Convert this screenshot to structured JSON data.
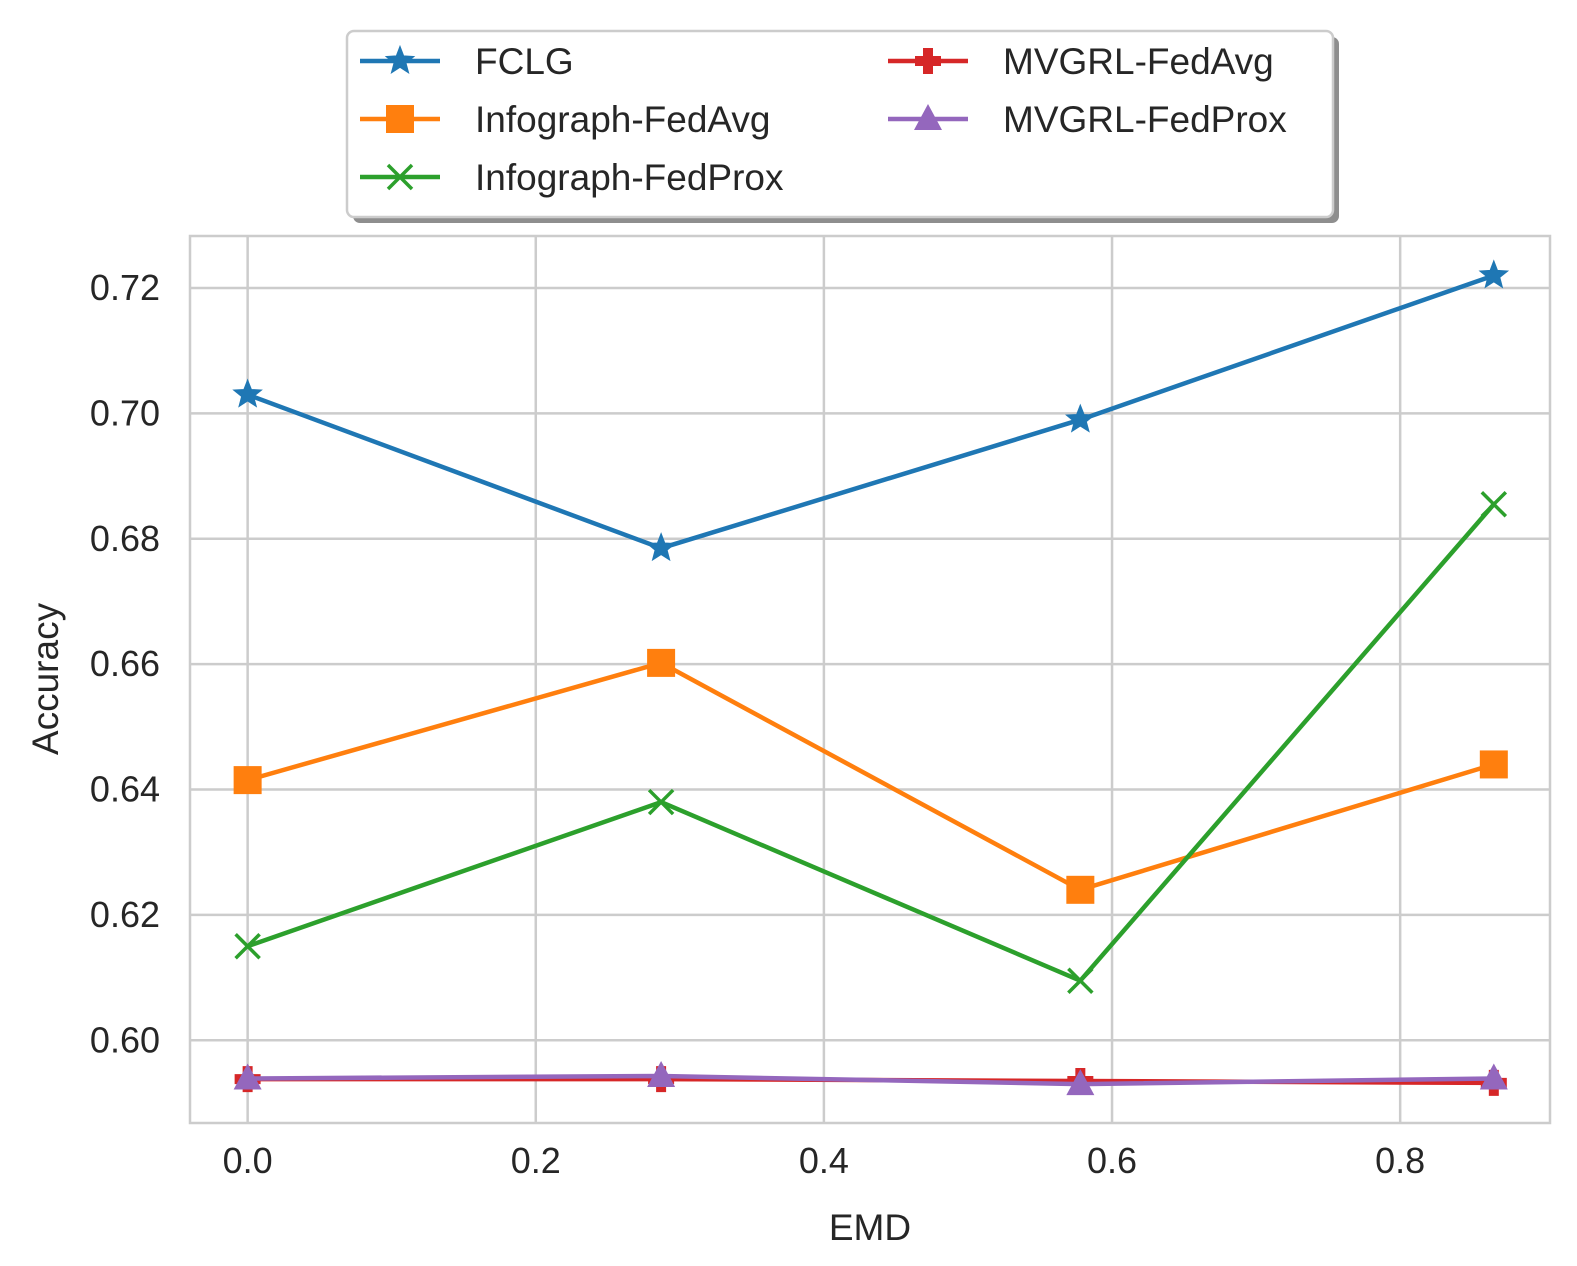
{
  "chart_data": {
    "type": "line",
    "title": "",
    "xlabel": "EMD",
    "ylabel": "Accuracy",
    "xlim": [
      -0.04,
      0.904
    ],
    "ylim": [
      0.5868,
      0.7283
    ],
    "x_ticks": [
      0.0,
      0.2,
      0.4,
      0.6,
      0.8
    ],
    "x_tick_labels": [
      "0.0",
      "0.2",
      "0.4",
      "0.6",
      "0.8"
    ],
    "y_ticks": [
      0.6,
      0.62,
      0.64,
      0.66,
      0.68,
      0.7,
      0.72
    ],
    "y_tick_labels": [
      "0.60",
      "0.62",
      "0.64",
      "0.66",
      "0.68",
      "0.70",
      "0.72"
    ],
    "grid": true,
    "legend_position": "top-center",
    "x": [
      0.0,
      0.287,
      0.578,
      0.865
    ],
    "series": [
      {
        "name": "FCLG",
        "color": "#1f77b4",
        "marker": "star",
        "values": [
          0.703,
          0.6785,
          0.699,
          0.722
        ]
      },
      {
        "name": "Infograph-FedAvg",
        "color": "#ff7f0e",
        "marker": "square",
        "values": [
          0.6415,
          0.6602,
          0.624,
          0.644
        ]
      },
      {
        "name": "Infograph-FedProx",
        "color": "#2ca02c",
        "marker": "x",
        "values": [
          0.615,
          0.638,
          0.6095,
          0.6855
        ]
      },
      {
        "name": "MVGRL-FedAvg",
        "color": "#d62728",
        "marker": "plus",
        "values": [
          0.5938,
          0.5938,
          0.5935,
          0.5932
        ]
      },
      {
        "name": "MVGRL-FedProx",
        "color": "#9467bd",
        "marker": "triangle",
        "values": [
          0.5939,
          0.5943,
          0.593,
          0.5939
        ]
      }
    ]
  }
}
